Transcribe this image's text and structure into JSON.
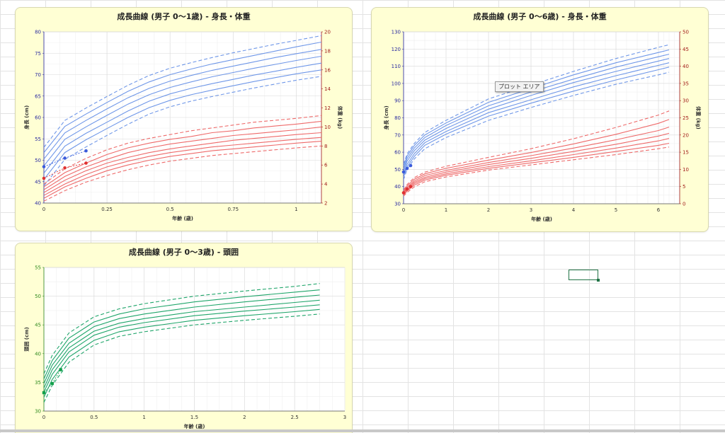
{
  "colors": {
    "height": "#6f97e8",
    "weight": "#ee6a6a",
    "head": "#1fa56a",
    "height_axis": "#2a2aa0",
    "weight_axis": "#a01818",
    "head_axis": "#2f8a1e"
  },
  "tooltip": {
    "text": "プロット エリア"
  },
  "chart_data": [
    {
      "type": "line",
      "title": "成長曲線 (男子 0～1歳) - 身長・体重",
      "xlabel": "年齢 (歳)",
      "ylabel": "身長 (cm)",
      "y2label": "体重 (kg)",
      "xlim": [
        0,
        1.1
      ],
      "ylim": [
        40,
        80
      ],
      "y2lim": [
        2,
        20
      ],
      "xticks": [
        0,
        0.25,
        0.5,
        0.75,
        1
      ],
      "xtick_labels": [
        "0",
        "0.25",
        "0.5",
        "0.75",
        "1"
      ],
      "yticks": [
        40,
        45,
        50,
        55,
        60,
        65,
        70,
        75,
        80
      ],
      "y2ticks": [
        2,
        4,
        6,
        8,
        10,
        12,
        14,
        16,
        18,
        20
      ],
      "grid": true,
      "x": [
        0,
        0.083,
        0.167,
        0.25,
        0.333,
        0.417,
        0.5,
        0.583,
        0.667,
        0.75,
        0.833,
        0.917,
        1.0,
        1.1
      ],
      "height_series": [
        {
          "style": "dashed",
          "values": [
            44.0,
            50.2,
            53.1,
            55.8,
            58.4,
            60.8,
            62.5,
            63.8,
            64.9,
            65.9,
            66.9,
            67.8,
            68.7,
            69.6
          ]
        },
        {
          "style": "solid",
          "values": [
            45.5,
            51.8,
            54.8,
            57.4,
            60.0,
            62.3,
            64.0,
            65.3,
            66.4,
            67.4,
            68.4,
            69.3,
            70.2,
            71.1
          ]
        },
        {
          "style": "solid",
          "values": [
            47.0,
            53.3,
            56.3,
            58.9,
            61.5,
            63.8,
            65.5,
            66.8,
            67.9,
            68.9,
            69.9,
            70.8,
            71.7,
            72.7
          ]
        },
        {
          "style": "solid",
          "values": [
            48.7,
            54.9,
            57.8,
            60.5,
            63.1,
            65.3,
            67.0,
            68.3,
            69.5,
            70.5,
            71.5,
            72.4,
            73.3,
            74.3
          ]
        },
        {
          "style": "solid",
          "values": [
            50.3,
            56.4,
            59.3,
            62.0,
            64.6,
            66.8,
            68.5,
            69.8,
            71.0,
            72.0,
            73.0,
            74.0,
            74.9,
            75.9
          ]
        },
        {
          "style": "solid",
          "values": [
            51.8,
            57.9,
            60.8,
            63.5,
            66.1,
            68.3,
            70.0,
            71.3,
            72.5,
            73.5,
            74.5,
            75.5,
            76.5,
            77.6
          ]
        },
        {
          "style": "dashed",
          "values": [
            53.0,
            59.3,
            62.2,
            64.9,
            67.5,
            69.8,
            71.5,
            72.8,
            74.0,
            75.1,
            76.1,
            77.1,
            78.0,
            79.1
          ]
        }
      ],
      "weight_series": [
        {
          "style": "dashed",
          "values": [
            2.2,
            3.3,
            4.2,
            4.9,
            5.5,
            6.0,
            6.4,
            6.7,
            7.0,
            7.2,
            7.4,
            7.6,
            7.8,
            8.0
          ]
        },
        {
          "style": "solid",
          "values": [
            2.5,
            3.7,
            4.6,
            5.4,
            6.0,
            6.5,
            6.9,
            7.2,
            7.5,
            7.7,
            7.9,
            8.1,
            8.3,
            8.5
          ]
        },
        {
          "style": "solid",
          "values": [
            2.8,
            4.0,
            5.0,
            5.8,
            6.4,
            6.9,
            7.3,
            7.6,
            7.9,
            8.1,
            8.3,
            8.5,
            8.7,
            8.9
          ]
        },
        {
          "style": "solid",
          "values": [
            3.1,
            4.4,
            5.4,
            6.2,
            6.8,
            7.3,
            7.7,
            8.0,
            8.3,
            8.6,
            8.8,
            9.0,
            9.2,
            9.4
          ]
        },
        {
          "style": "solid",
          "values": [
            3.4,
            4.8,
            5.8,
            6.6,
            7.3,
            7.8,
            8.2,
            8.5,
            8.8,
            9.1,
            9.3,
            9.5,
            9.7,
            10.0
          ]
        },
        {
          "style": "solid",
          "values": [
            3.7,
            5.2,
            6.2,
            7.1,
            7.8,
            8.3,
            8.7,
            9.0,
            9.4,
            9.6,
            9.9,
            10.1,
            10.3,
            10.6
          ]
        },
        {
          "style": "dashed",
          "values": [
            4.0,
            5.6,
            6.7,
            7.6,
            8.3,
            8.8,
            9.2,
            9.6,
            9.9,
            10.2,
            10.5,
            10.7,
            10.9,
            11.2
          ]
        }
      ],
      "height_points": [
        {
          "x": 0,
          "y": 48.5
        },
        {
          "x": 0.083,
          "y": 50.5
        },
        {
          "x": 0.167,
          "y": 52.2
        }
      ],
      "weight_points": [
        {
          "x": 0,
          "y": 4.6
        },
        {
          "x": 0.083,
          "y": 5.7
        },
        {
          "x": 0.167,
          "y": 6.2
        }
      ]
    },
    {
      "type": "line",
      "title": "成長曲線 (男子 0～6歳) - 身長・体重",
      "xlabel": "年齢 (歳)",
      "ylabel": "身長 (cm)",
      "y2label": "体重 (kg)",
      "xlim": [
        0,
        6.5
      ],
      "ylim": [
        30,
        130
      ],
      "y2lim": [
        0,
        50
      ],
      "xticks": [
        0,
        1,
        2,
        3,
        4,
        5,
        6
      ],
      "xtick_labels": [
        "0",
        "1",
        "2",
        "3",
        "4",
        "5",
        "6"
      ],
      "yticks": [
        30,
        40,
        50,
        60,
        70,
        80,
        90,
        100,
        110,
        120,
        130
      ],
      "y2ticks": [
        0,
        5,
        10,
        15,
        20,
        25,
        30,
        35,
        40,
        45,
        50
      ],
      "grid": true,
      "x": [
        0,
        0.083,
        0.25,
        0.5,
        1,
        2,
        3,
        4,
        5,
        6,
        6.25
      ],
      "height_series": [
        {
          "style": "dashed",
          "values": [
            44.0,
            50.0,
            56.0,
            62.0,
            68.5,
            78.5,
            86.0,
            93.0,
            99.5,
            105.0,
            106.5
          ]
        },
        {
          "style": "solid",
          "values": [
            45.5,
            51.5,
            57.5,
            64.0,
            70.5,
            81.0,
            88.5,
            95.5,
            102.0,
            108.0,
            109.5
          ]
        },
        {
          "style": "solid",
          "values": [
            47.0,
            53.0,
            59.0,
            65.5,
            72.0,
            83.0,
            90.5,
            98.0,
            104.5,
            110.5,
            112.0
          ]
        },
        {
          "style": "solid",
          "values": [
            48.7,
            54.8,
            60.8,
            67.0,
            73.8,
            85.0,
            93.0,
            100.5,
            107.0,
            113.0,
            114.5
          ]
        },
        {
          "style": "solid",
          "values": [
            50.3,
            56.3,
            62.3,
            68.5,
            75.5,
            87.0,
            95.0,
            102.5,
            109.5,
            115.5,
            117.0
          ]
        },
        {
          "style": "solid",
          "values": [
            51.8,
            57.8,
            63.8,
            70.0,
            77.0,
            89.0,
            97.0,
            105.0,
            112.0,
            118.0,
            119.5
          ]
        },
        {
          "style": "dashed",
          "values": [
            53.0,
            59.0,
            65.0,
            71.5,
            78.5,
            91.0,
            99.0,
            107.0,
            114.5,
            121.0,
            122.5
          ]
        }
      ],
      "weight_series": [
        {
          "style": "dashed",
          "values": [
            2.2,
            3.3,
            4.9,
            6.4,
            7.8,
            9.8,
            11.3,
            12.8,
            14.3,
            16.0,
            16.5
          ]
        },
        {
          "style": "solid",
          "values": [
            2.5,
            3.7,
            5.4,
            6.9,
            8.3,
            10.3,
            11.9,
            13.5,
            15.2,
            17.0,
            17.6
          ]
        },
        {
          "style": "solid",
          "values": [
            2.8,
            4.0,
            5.8,
            7.3,
            8.7,
            10.8,
            12.5,
            14.3,
            16.2,
            18.3,
            19.0
          ]
        },
        {
          "style": "solid",
          "values": [
            3.1,
            4.4,
            6.2,
            7.7,
            9.2,
            11.4,
            13.2,
            15.2,
            17.3,
            19.7,
            20.5
          ]
        },
        {
          "style": "solid",
          "values": [
            3.4,
            4.8,
            6.6,
            8.2,
            9.7,
            12.0,
            14.0,
            16.2,
            18.6,
            21.3,
            22.3
          ]
        },
        {
          "style": "solid",
          "values": [
            3.7,
            5.2,
            7.1,
            8.7,
            10.3,
            12.7,
            14.9,
            17.4,
            20.2,
            23.4,
            24.5
          ]
        },
        {
          "style": "dashed",
          "values": [
            4.0,
            5.6,
            7.6,
            9.2,
            10.9,
            13.5,
            16.0,
            18.9,
            22.2,
            25.8,
            27.0
          ]
        }
      ],
      "height_points": [
        {
          "x": 0,
          "y": 48.5
        },
        {
          "x": 0.083,
          "y": 50.5
        },
        {
          "x": 0.167,
          "y": 52.2
        }
      ],
      "weight_points": [
        {
          "x": 0,
          "y": 3.2
        },
        {
          "x": 0.083,
          "y": 4.3
        },
        {
          "x": 0.167,
          "y": 5.0
        }
      ]
    },
    {
      "type": "line",
      "title": "成長曲線 (男子 0～3歳) - 頭囲",
      "xlabel": "年齢 (歳)",
      "ylabel": "頭囲 (cm)",
      "xlim": [
        0,
        3
      ],
      "ylim": [
        30,
        55
      ],
      "xticks": [
        0,
        0.5,
        1,
        1.5,
        2,
        2.5,
        3
      ],
      "xtick_labels": [
        "0",
        "0.5",
        "1",
        "1.5",
        "2",
        "2.5",
        "3"
      ],
      "yticks": [
        30,
        35,
        40,
        45,
        50,
        55
      ],
      "grid": true,
      "x": [
        0,
        0.083,
        0.25,
        0.5,
        0.75,
        1,
        1.5,
        2,
        2.5,
        2.75
      ],
      "series": [
        {
          "style": "dashed",
          "values": [
            31.5,
            34.5,
            38.5,
            41.5,
            43.0,
            43.8,
            45.0,
            45.8,
            46.5,
            46.9
          ]
        },
        {
          "style": "solid",
          "values": [
            32.4,
            35.5,
            39.4,
            42.3,
            43.8,
            44.6,
            45.8,
            46.6,
            47.3,
            47.7
          ]
        },
        {
          "style": "solid",
          "values": [
            33.3,
            36.4,
            40.3,
            43.2,
            44.6,
            45.4,
            46.6,
            47.4,
            48.1,
            48.5
          ]
        },
        {
          "style": "solid",
          "values": [
            34.0,
            37.2,
            41.0,
            43.9,
            45.3,
            46.1,
            47.3,
            48.1,
            48.9,
            49.3
          ]
        },
        {
          "style": "solid",
          "values": [
            34.8,
            38.0,
            41.8,
            44.7,
            46.1,
            46.9,
            48.1,
            49.0,
            49.8,
            50.2
          ]
        },
        {
          "style": "solid",
          "values": [
            35.6,
            38.8,
            42.7,
            45.5,
            46.9,
            47.8,
            49.0,
            49.9,
            50.7,
            51.1
          ]
        },
        {
          "style": "dashed",
          "values": [
            36.5,
            39.7,
            43.6,
            46.4,
            47.8,
            48.7,
            50.0,
            50.9,
            51.7,
            52.2
          ]
        }
      ],
      "points": [
        {
          "x": 0,
          "y": 33.2
        },
        {
          "x": 0.083,
          "y": 34.8
        },
        {
          "x": 0.167,
          "y": 37.2
        }
      ]
    }
  ]
}
